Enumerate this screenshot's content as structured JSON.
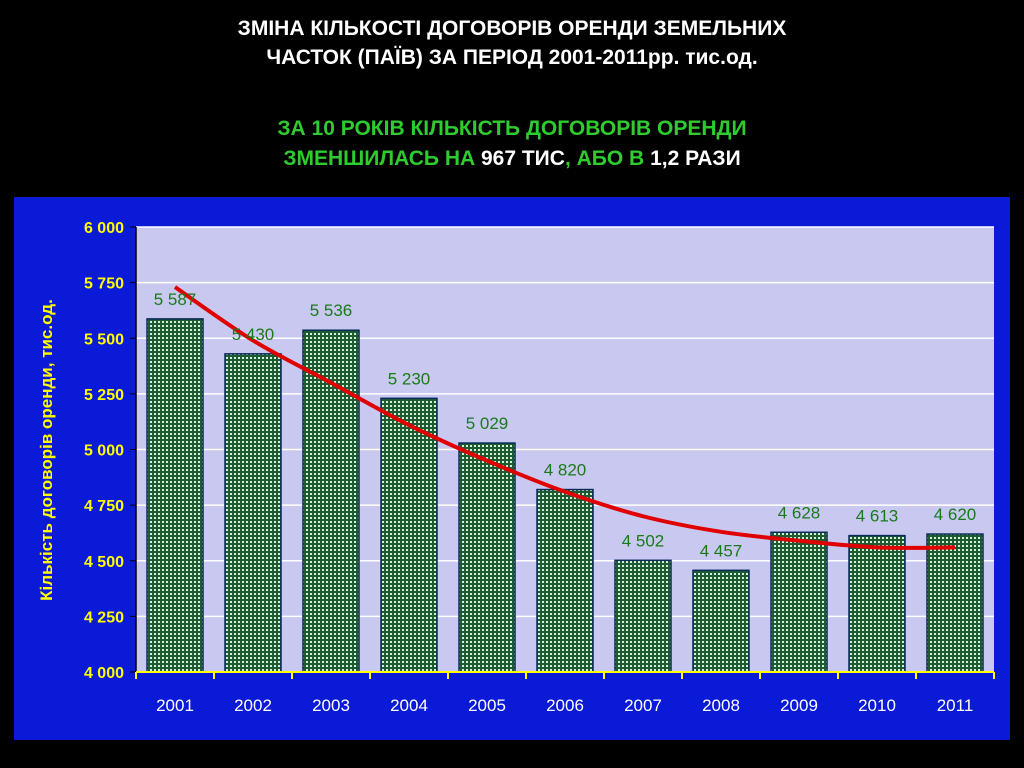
{
  "header": {
    "title_line1": "ЗМІНА КІЛЬКОСТІ ДОГОВОРІВ ОРЕНДИ ЗЕМЕЛЬНИХ",
    "title_line2": "ЧАСТОК (ПАЇВ) ЗА ПЕРІОД 2001-2011рр. тис.од.",
    "sub_line1": "ЗА 10 РОКІВ КІЛЬКІСТЬ ДОГОВОРІВ ОРЕНДИ",
    "sub_line2_a": "ЗМЕНШИЛАСЬ НА ",
    "sub_line2_b": "967 ТИС",
    "sub_line2_c": ", АБО В ",
    "sub_line2_d": "1,2 РАЗИ"
  },
  "colors": {
    "title": "#ffffff",
    "highlight_green": "#2ecc2e",
    "frame_bg": "#0a1ad6",
    "plot_bg": "#c8c8f0",
    "bar_fill": "#1e5a32",
    "bar_grid": "#ffffff",
    "data_label": "#1a7a1a",
    "trend_line": "#e00000",
    "axis_text": "#ffff00",
    "category_text": "#ffffff"
  },
  "chart_data": {
    "type": "bar",
    "categories": [
      "2001",
      "2002",
      "2003",
      "2004",
      "2005",
      "2006",
      "2007",
      "2008",
      "2009",
      "2010",
      "2011"
    ],
    "values": [
      5587,
      5430,
      5536,
      5230,
      5029,
      4820,
      4502,
      4457,
      4628,
      4613,
      4620
    ],
    "data_labels": [
      "5 587",
      "5 430",
      "5 536",
      "5 230",
      "5 029",
      "4 820",
      "4 502",
      "4 457",
      "4 628",
      "4 613",
      "4 620"
    ],
    "trendline": {
      "type": "polynomial",
      "values": [
        5730,
        5490,
        5300,
        5110,
        4950,
        4810,
        4700,
        4630,
        4590,
        4560,
        4560
      ]
    },
    "ylabel": "Кількість договорів оренди, тис.од.",
    "xlabel": "",
    "ylim": [
      4000,
      6000
    ],
    "yticks": [
      4000,
      4250,
      4500,
      4750,
      5000,
      5250,
      5500,
      5750,
      6000
    ],
    "ytick_labels": [
      "4 000",
      "4 250",
      "4 500",
      "4 750",
      "5 000",
      "5 250",
      "5 500",
      "5 750",
      "6 000"
    ],
    "grid": "horizontal",
    "legend": "none"
  }
}
